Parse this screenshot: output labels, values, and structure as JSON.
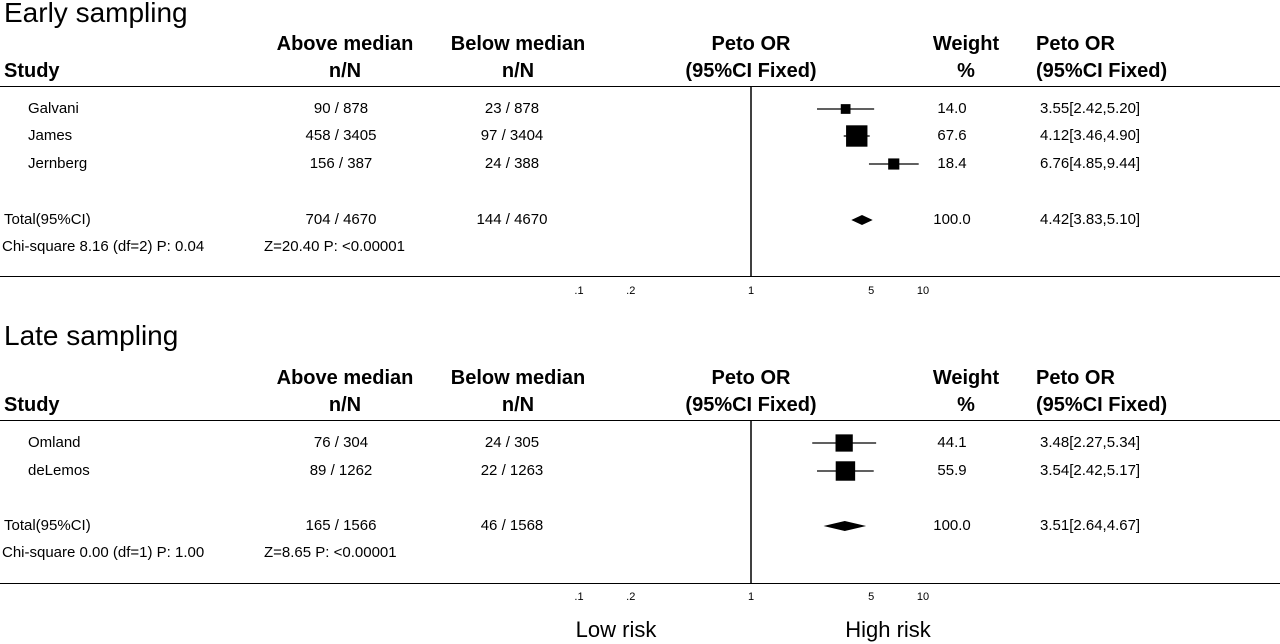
{
  "chart_data": [
    {
      "type": "forest",
      "title": "Early sampling",
      "columns": {
        "study": "Study",
        "above_median": [
          "Above median",
          "n/N"
        ],
        "below_median": [
          "Below median",
          "n/N"
        ],
        "or_plot": [
          "Peto OR",
          "(95%CI Fixed)"
        ],
        "weight": [
          "Weight",
          "%"
        ],
        "or_text": [
          "Peto OR",
          "(95%CI Fixed)"
        ]
      },
      "xscale": "log",
      "xlim": [
        0.1,
        10
      ],
      "ticks": [
        ".1",
        ".2",
        "1",
        "5",
        "10"
      ],
      "tick_values": [
        0.1,
        0.2,
        1,
        5,
        10
      ],
      "studies": [
        {
          "name": "Galvani",
          "above": "90 / 878",
          "below": "23 / 878",
          "weight": "14.0",
          "ci_text": "3.55[2.42,5.20]",
          "or": 3.55,
          "lo": 2.42,
          "hi": 5.2,
          "w": 14.0
        },
        {
          "name": "James",
          "above": "458 / 3405",
          "below": "97 / 3404",
          "weight": "67.6",
          "ci_text": "4.12[3.46,4.90]",
          "or": 4.12,
          "lo": 3.46,
          "hi": 4.9,
          "w": 67.6
        },
        {
          "name": "Jernberg",
          "above": "156 / 387",
          "below": "24 / 388",
          "weight": "18.4",
          "ci_text": "6.76[4.85,9.44]",
          "or": 6.76,
          "lo": 4.85,
          "hi": 9.44,
          "w": 18.4
        }
      ],
      "total": {
        "name": "Total(95%CI)",
        "above": "704 / 4670",
        "below": "144 / 4670",
        "weight": "100.0",
        "ci_text": "4.42[3.83,5.10]",
        "or": 4.42,
        "lo": 3.83,
        "hi": 5.1
      },
      "heterogeneity": "Chi-square 8.16 (df=2) P: 0.04",
      "overall_effect": "Z=20.40 P: <0.00001"
    },
    {
      "type": "forest",
      "title": "Late sampling",
      "columns": {
        "study": "Study",
        "above_median": [
          "Above median",
          "n/N"
        ],
        "below_median": [
          "Below median",
          "n/N"
        ],
        "or_plot": [
          "Peto OR",
          "(95%CI Fixed)"
        ],
        "weight": [
          "Weight",
          "%"
        ],
        "or_text": [
          "Peto OR",
          "(95%CI Fixed)"
        ]
      },
      "xscale": "log",
      "xlim": [
        0.1,
        10
      ],
      "ticks": [
        ".1",
        ".2",
        "1",
        "5",
        "10"
      ],
      "tick_values": [
        0.1,
        0.2,
        1,
        5,
        10
      ],
      "studies": [
        {
          "name": "Omland",
          "above": "76 / 304",
          "below": "24 / 305",
          "weight": "44.1",
          "ci_text": "3.48[2.27,5.34]",
          "or": 3.48,
          "lo": 2.27,
          "hi": 5.34,
          "w": 44.1
        },
        {
          "name": "deLemos",
          "above": "89 / 1262",
          "below": "22 / 1263",
          "weight": "55.9",
          "ci_text": "3.54[2.42,5.17]",
          "or": 3.54,
          "lo": 2.42,
          "hi": 5.17,
          "w": 55.9
        }
      ],
      "total": {
        "name": "Total(95%CI)",
        "above": "165 / 1566",
        "below": "46 / 1568",
        "weight": "100.0",
        "ci_text": "3.51[2.64,4.67]",
        "or": 3.51,
        "lo": 2.64,
        "hi": 4.67
      },
      "heterogeneity": "Chi-square 0.00 (df=1) P: 1.00",
      "overall_effect": "Z=8.65 P: <0.00001"
    }
  ],
  "footer": {
    "left": "Low risk",
    "right": "High risk"
  }
}
